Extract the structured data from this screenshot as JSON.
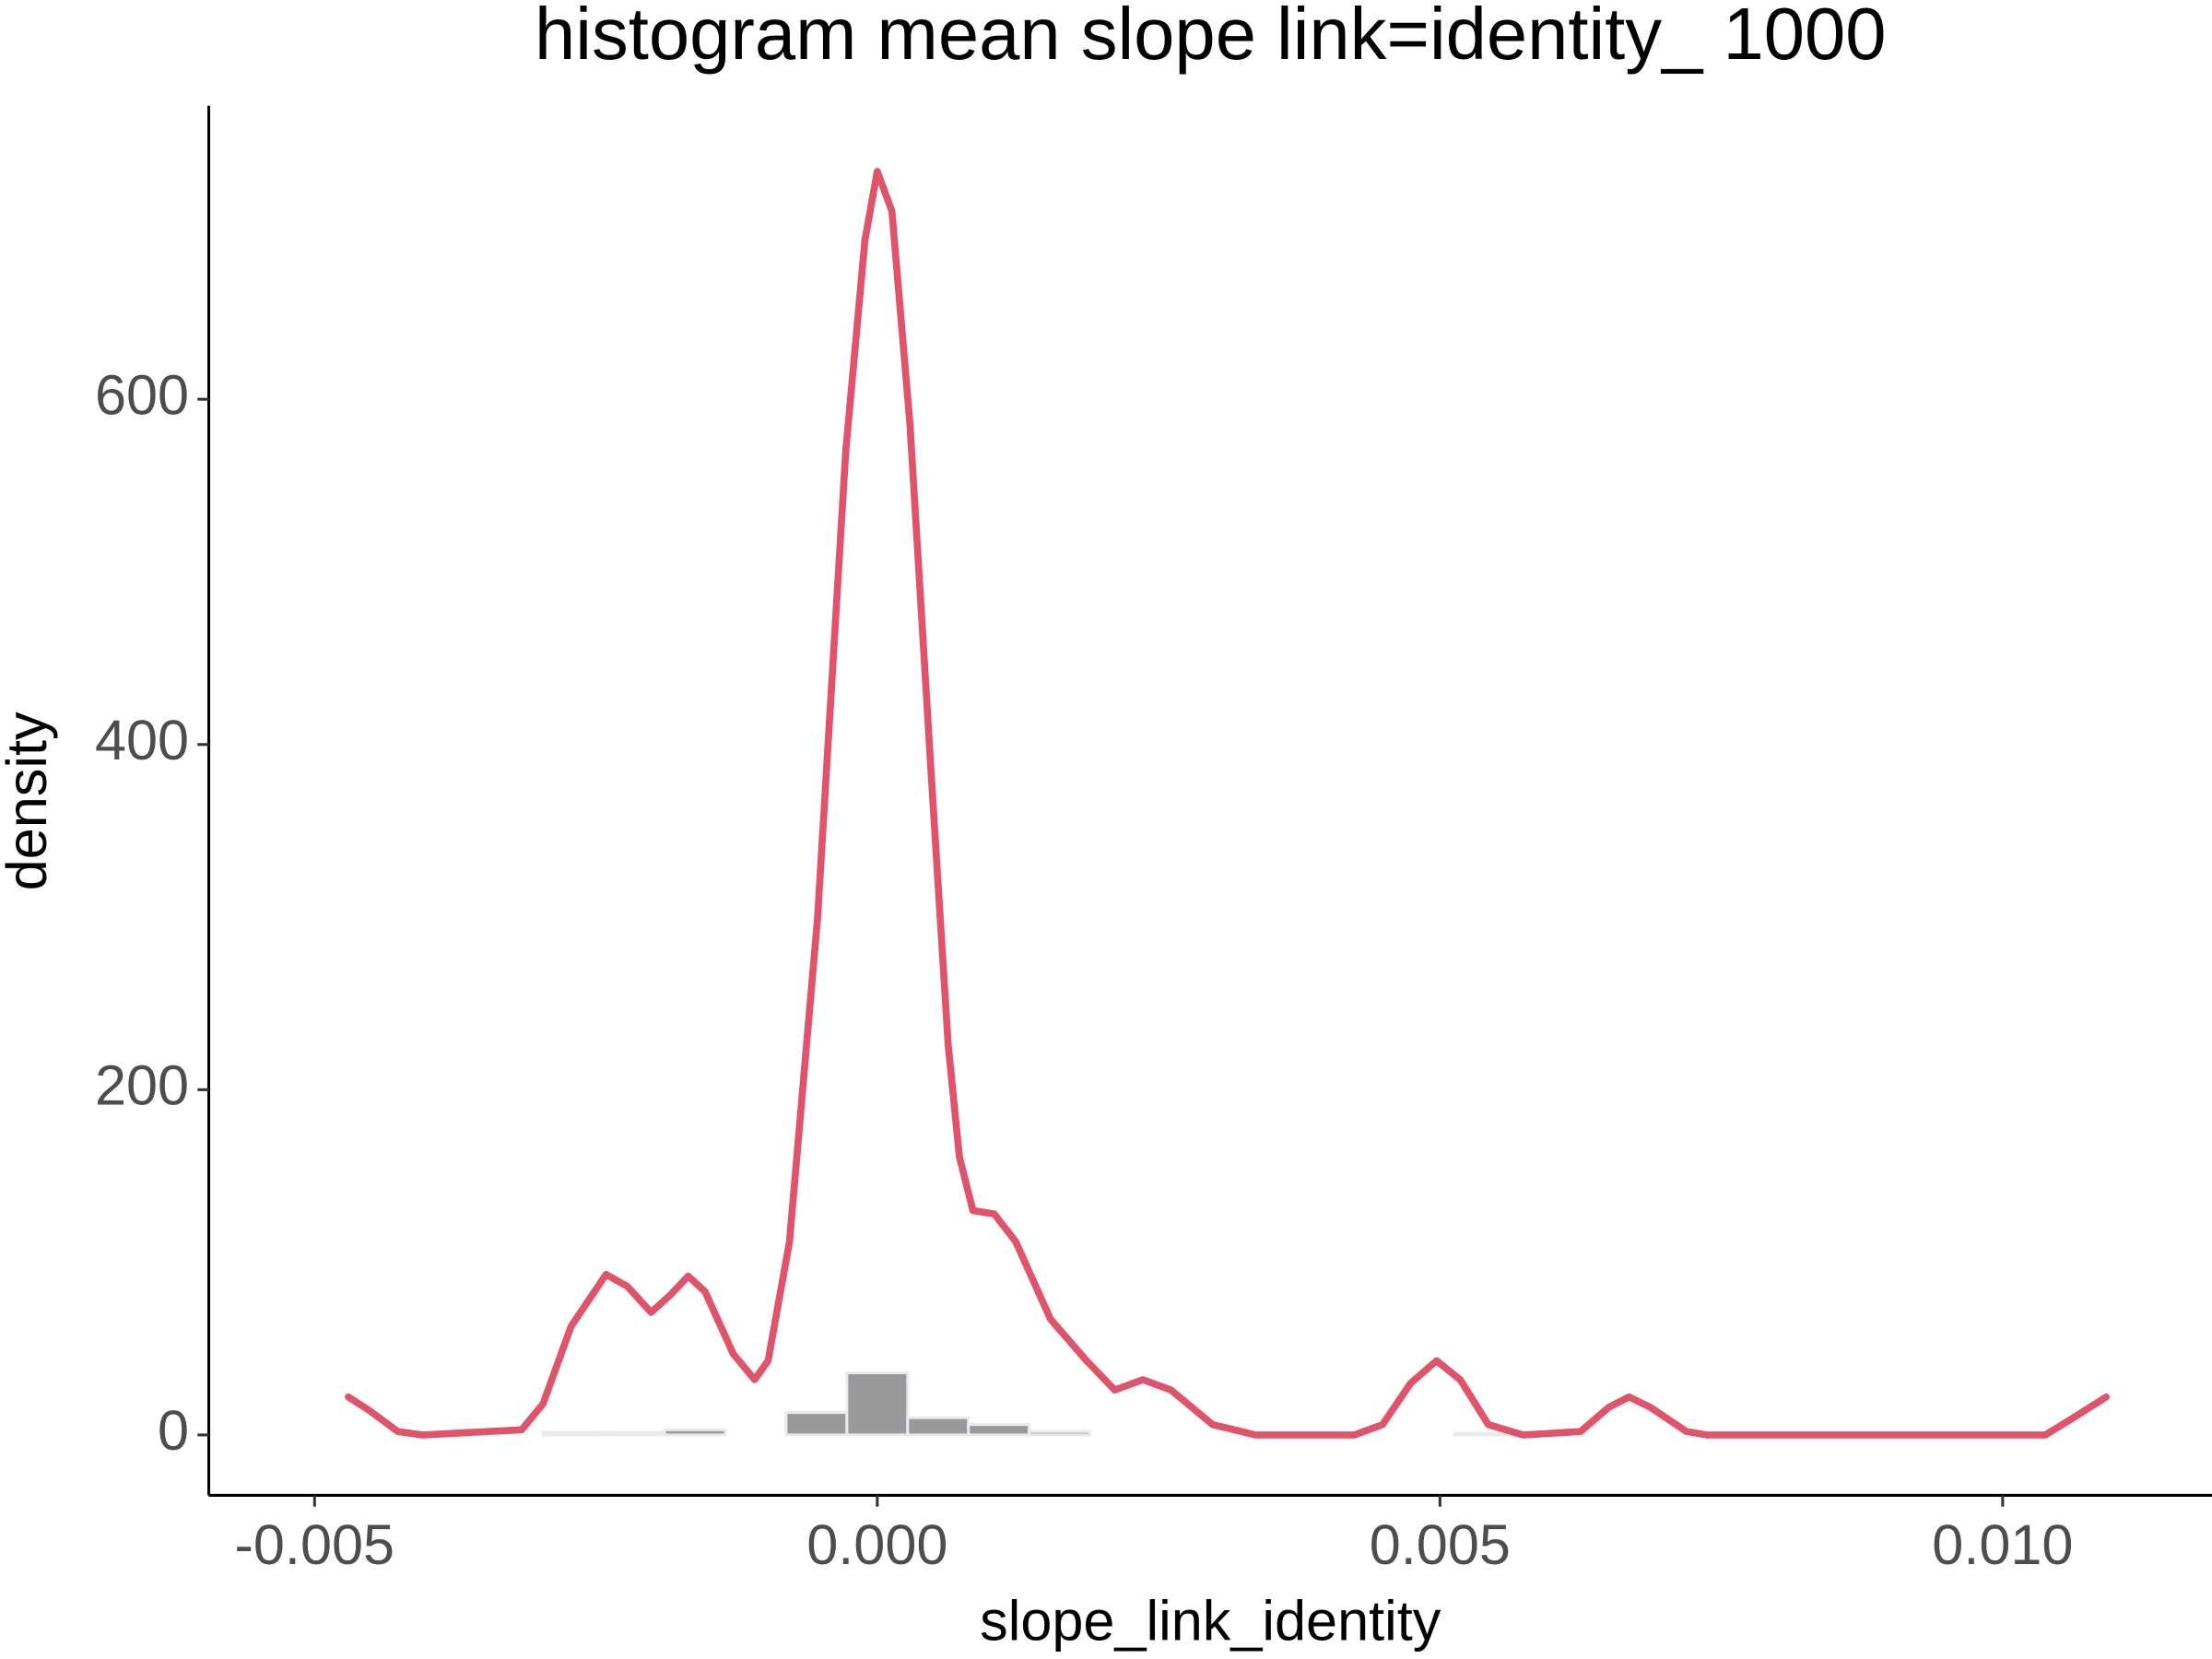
{
  "chart_data": {
    "type": "histogram",
    "title": "histogram mean slope link=identity_ 1000",
    "x_label": "slope_link_identity",
    "y_label": "density",
    "bins": [
      -0.00513,
      -0.00459,
      -0.00405,
      -0.00351,
      -0.00297,
      -0.00243,
      -0.00189,
      -0.00135,
      -0.00081,
      -0.00027,
      0.00027,
      0.00081,
      0.00135,
      0.00189,
      0.00243,
      0.00297,
      0.00351,
      0.00405,
      0.00459,
      0.00513,
      0.00567,
      0.00621,
      0.00675,
      0.00729,
      0.00783,
      0.00837,
      0.00891,
      0.00945,
      0.00999,
      0.01053,
      0.01107
    ],
    "values": [
      0,
      0,
      0,
      0,
      1.5,
      1.5,
      3,
      0,
      13,
      36,
      10,
      6,
      2,
      0,
      0,
      0,
      0,
      0,
      0,
      1,
      0,
      0,
      0,
      0,
      0,
      0,
      0,
      0,
      0,
      0
    ],
    "color": "#999999",
    "edge_color": "#e8eaf0",
    "density": {
      "color": "#df536b",
      "x": [
        -0.0047,
        -0.00451,
        -0.00426,
        -0.00404,
        -0.00316,
        -0.00297,
        -0.00272,
        -0.00241,
        -0.00222,
        -0.00201,
        -0.00184,
        -0.00168,
        -0.00153,
        -0.00128,
        -0.00109,
        -0.00097,
        -0.00078,
        -0.00053,
        -0.00028,
        -0.00011,
        0,
        0.00013,
        0.00029,
        0.00048,
        0.00063,
        0.00073,
        0.00085,
        0.00104,
        0.00123,
        0.00154,
        0.00186,
        0.00211,
        0.00236,
        0.00261,
        0.00298,
        0.00336,
        0.00424,
        0.00449,
        0.00474,
        0.00497,
        0.00518,
        0.00543,
        0.00574,
        0.00625,
        0.0065,
        0.00668,
        0.00687,
        0.00719,
        0.00737,
        0.01038,
        0.01063,
        0.01092
      ],
      "values": [
        22,
        14,
        2,
        0,
        3,
        18,
        63,
        93,
        86,
        71,
        81,
        92,
        83,
        47,
        32,
        43,
        112,
        300,
        570,
        692,
        732,
        709,
        586,
        382,
        226,
        161,
        130,
        128,
        112,
        67,
        43,
        26,
        32,
        26,
        6,
        0,
        0,
        6,
        30,
        43,
        32,
        6,
        0,
        2,
        16,
        22,
        16,
        2,
        0,
        0,
        10,
        22
      ]
    },
    "xlim": [
      -0.00594,
      0.01186
    ],
    "ylim": [
      -35,
      770
    ],
    "xticks": [
      -0.005,
      {
        "value": 0,
        "label": "0.000"
      },
      0.005,
      {
        "value": 0.01,
        "label": "0.010"
      }
    ],
    "yticks": [
      0,
      200,
      400,
      600
    ],
    "grid": false
  }
}
